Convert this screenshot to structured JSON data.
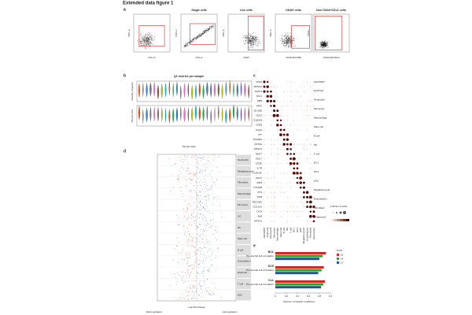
{
  "header": {
    "title": "Extended data figure 1"
  },
  "panel_a": {
    "label": "a",
    "plots": [
      {
        "x_label": "FSC-A",
        "y_label": "SSC-A"
      },
      {
        "title": "Single cells",
        "x_label": "FSC-A",
        "y_label": "FSC-H"
      },
      {
        "title": "Live cells",
        "x_label": "DAPI",
        "y_label": "SSC-A"
      },
      {
        "title": "CD45+ cells",
        "x_label": "CD45 BUV395",
        "y_label": "SSC-A"
      },
      {
        "title": "Non CD34+CD14- cells",
        "x_label": "CD34 PE/CD14",
        "y_label": "CD14"
      }
    ]
  },
  "panel_b": {
    "label": "b",
    "title": "QC metrics per sample",
    "x_label": "Sample data",
    "y_labels": [
      "Number of genes",
      "Percent mito"
    ]
  },
  "panel_c": {
    "label": "c",
    "genes": [
      "CD34",
      "SPINK2",
      "GATA1",
      "KLF1",
      "HBB",
      "MPO",
      "ELANE",
      "CD14",
      "S100A9",
      "CD68",
      "C1QA",
      "KIT",
      "TPSAB1",
      "CD79A",
      "MS4A1",
      "NKG7",
      "GNLY",
      "CD3E",
      "IL7R",
      "CLEC9A",
      "CD1C",
      "IRF8",
      "ITGA2B",
      "PF4",
      "KDR",
      "PECAM1",
      "COL1A1",
      "DCN",
      "ALB",
      "APOA1"
    ],
    "cell_types": [
      "HSC/MPP",
      "Erythroid",
      "Neutrophil",
      "Monocyte",
      "Macrophage",
      "Mast cell",
      "B cell",
      "NK",
      "T cell",
      "DC1",
      "DC2",
      "pDC",
      "Megakaryocyte",
      "Endothelium",
      "Fibroblast",
      "Hepatocyte"
    ],
    "legend_title": "Fraction of cells"
  },
  "panel_d": {
    "label": "d",
    "x_label": "Log fold change",
    "left_end": "Early gestation",
    "right_end": "Late gestation",
    "groups": [
      "Neutrophil",
      "Megakaryocyte",
      "Fibroblast",
      "Macrophage",
      "Monocyte",
      "ILC",
      "NK",
      "Mast cell",
      "B cell",
      "Endothelium",
      "Erythroid",
      "T cell",
      "pDC"
    ]
  },
  "panel_e": {
    "label": "e",
    "x_label": "Pearson correlation coefficient",
    "legend_title": "PCW",
    "categories": [
      "BCL",
      "SCS",
      "CLL"
    ],
    "subtitle": "Pre-sternal cell correlation",
    "xlim": [
      0,
      1
    ],
    "xticks": [
      0,
      0.2,
      0.4,
      0.6,
      0.8,
      {
        "value": 1,
        "label": "1.0"
      }
    ],
    "series": [
      {
        "name": "12",
        "color": "#d62728",
        "values": [
          0.92,
          0.88,
          0.9
        ]
      },
      {
        "name": "14",
        "color": "#2ca02c",
        "values": [
          0.86,
          0.84,
          0.87
        ]
      },
      {
        "name": "17",
        "color": "#1f4fb4",
        "values": [
          0.8,
          0.78,
          0.83
        ]
      }
    ]
  }
}
